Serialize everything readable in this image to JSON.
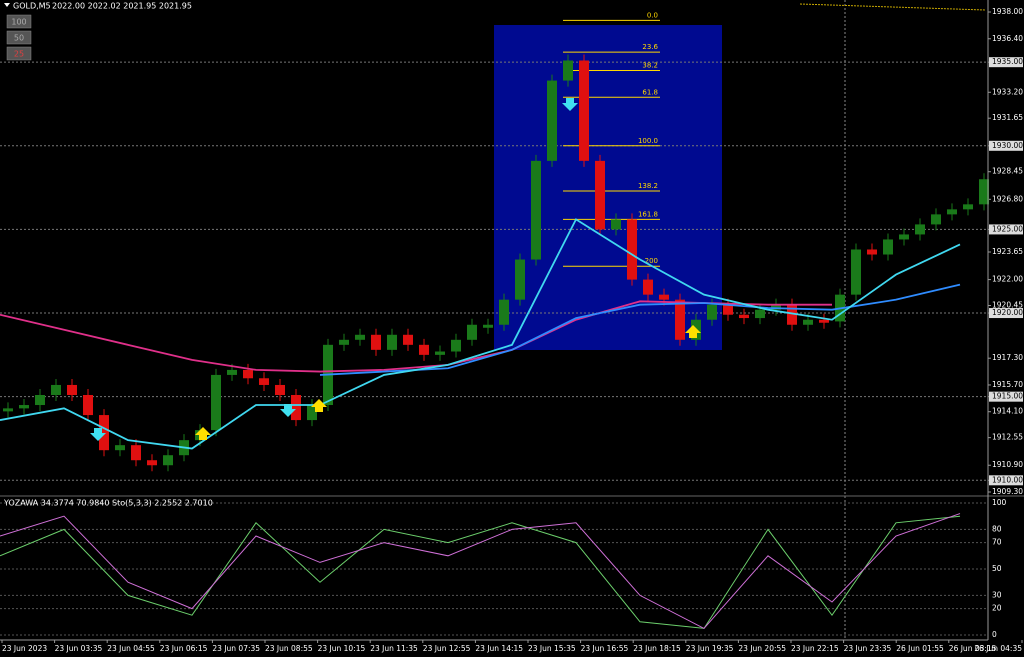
{
  "header": {
    "symbol": "GOLD,M5",
    "ohlc": "2022.00 2022.02 2021.95 2021.95"
  },
  "buttons": [
    "100",
    "50",
    "25"
  ],
  "price_chart": {
    "ylim": [
      1909.3,
      1938
    ],
    "yticks": [
      {
        "value": 1938,
        "label": "1938.00"
      },
      {
        "value": 1936.4,
        "label": "1936.40"
      },
      {
        "value": 1935,
        "label": "1935.00"
      },
      {
        "value": 1933.2,
        "label": "1933.20"
      },
      {
        "value": 1931.65,
        "label": "1931.65"
      },
      {
        "value": 1930,
        "label": "1930.00"
      },
      {
        "value": 1928.45,
        "label": "1928.45"
      },
      {
        "value": 1926.8,
        "label": "1926.80"
      },
      {
        "value": 1925,
        "label": "1925.00"
      },
      {
        "value": 1923.65,
        "label": "1923.65"
      },
      {
        "value": 1922,
        "label": "1922.00"
      },
      {
        "value": 1920.45,
        "label": "1920.45"
      },
      {
        "value": 1920,
        "label": "1920.00"
      },
      {
        "value": 1917.3,
        "label": "1917.30"
      },
      {
        "value": 1915.7,
        "label": "1915.70"
      },
      {
        "value": 1915,
        "label": "1915.00"
      },
      {
        "value": 1914.1,
        "label": "1914.10"
      },
      {
        "value": 1912.55,
        "label": "1912.55"
      },
      {
        "value": 1910.9,
        "label": "1910.90"
      },
      {
        "value": 1910,
        "label": "1910.00"
      },
      {
        "value": 1909.3,
        "label": "1909.30"
      }
    ],
    "marked_levels": [
      1935,
      1930,
      1925,
      1920,
      1915,
      1910
    ],
    "closes": [
      1914.3,
      1914.5,
      1915.1,
      1915.7,
      1915.1,
      1913.9,
      1911.8,
      1912.1,
      1911.2,
      1910.9,
      1911.5,
      1912.4,
      1913,
      1916.3,
      1916.6,
      1916.1,
      1915.7,
      1915.1,
      1913.6,
      1914.5,
      1918.1,
      1918.4,
      1918.7,
      1917.8,
      1918.7,
      1918.1,
      1917.5,
      1917.7,
      1918.4,
      1919.3,
      1919.3,
      1920.8,
      1923.2,
      1929.1,
      1933.9,
      1935.1,
      1929.1,
      1925,
      1925.6,
      1922,
      1921.1,
      1920.8,
      1918.4,
      1919.6,
      1920.5,
      1919.9,
      1919.7,
      1920.2,
      1920.5,
      1919.3,
      1919.6,
      1919.5,
      1921.1,
      1923.8,
      1923.5,
      1924.4,
      1924.7,
      1925.3,
      1925.9,
      1926.2,
      1926.5,
      1928
    ],
    "up_color": "#1a7a1a",
    "down_color": "#e01010",
    "moving_averages": [
      {
        "color": "#e0308a",
        "values": [
          1919.9,
          1919,
          1918.1,
          1917.2,
          1916.6,
          1916.5,
          1916.6,
          1916.9,
          1917.8,
          1919.6,
          1920.7,
          1920.6,
          1920.5,
          1920.5,
          null,
          null
        ]
      },
      {
        "color": "#2f8cff",
        "values": [
          null,
          null,
          null,
          null,
          null,
          1916.3,
          1916.5,
          1916.7,
          1917.8,
          1919.7,
          1920.5,
          1920.6,
          1920.3,
          1920.2,
          1920.8,
          1921.7
        ]
      },
      {
        "color": "#40d8f0",
        "values": [
          1913.6,
          1914.3,
          1912.4,
          1911.9,
          1914.5,
          1914.5,
          1916.3,
          1916.9,
          1918.1,
          1925.6,
          1923.2,
          1921.1,
          1920.2,
          1919.6,
          1922.3,
          1924.1
        ]
      }
    ],
    "fib_levels": [
      {
        "label": "0.0",
        "price": 1937.5
      },
      {
        "label": "23.6",
        "price": 1935.6
      },
      {
        "label": "38.2",
        "price": 1934.5
      },
      {
        "label": "61.8",
        "price": 1932.9
      },
      {
        "label": "100.0",
        "price": 1930
      },
      {
        "label": "138.2",
        "price": 1927.3
      },
      {
        "label": "161.8",
        "price": 1925.6
      },
      {
        "label": "200",
        "price": 1922.8
      }
    ]
  },
  "indicator": {
    "label": "YOZAWA 34.3774 70.9840 Sto(5,3,3) 2.2552 2.7010",
    "ylim": [
      0,
      100
    ],
    "yticks": [
      100,
      80,
      70,
      50,
      30,
      20,
      0
    ],
    "series": [
      {
        "color": "#6ccf6c",
        "values": [
          60,
          80,
          30,
          15,
          85,
          40,
          80,
          70,
          85,
          70,
          10,
          5,
          80,
          15,
          85,
          90
        ]
      },
      {
        "color": "#d070d8",
        "values": [
          75,
          90,
          40,
          20,
          75,
          55,
          70,
          60,
          80,
          85,
          30,
          5,
          60,
          25,
          75,
          92
        ]
      }
    ]
  },
  "time_axis": [
    "23 Jun 2023",
    "23 Jun 03:35",
    "23 Jun 04:55",
    "23 Jun 06:15",
    "23 Jun 07:35",
    "23 Jun 08:55",
    "23 Jun 10:15",
    "23 Jun 11:35",
    "23 Jun 12:55",
    "23 Jun 14:15",
    "23 Jun 15:35",
    "23 Jun 16:55",
    "23 Jun 18:15",
    "23 Jun 19:35",
    "23 Jun 20:55",
    "23 Jun 22:15",
    "23 Jun 23:35",
    "26 Jun 01:55",
    "26 Jun 03:15",
    "26 Jun 04:35"
  ]
}
